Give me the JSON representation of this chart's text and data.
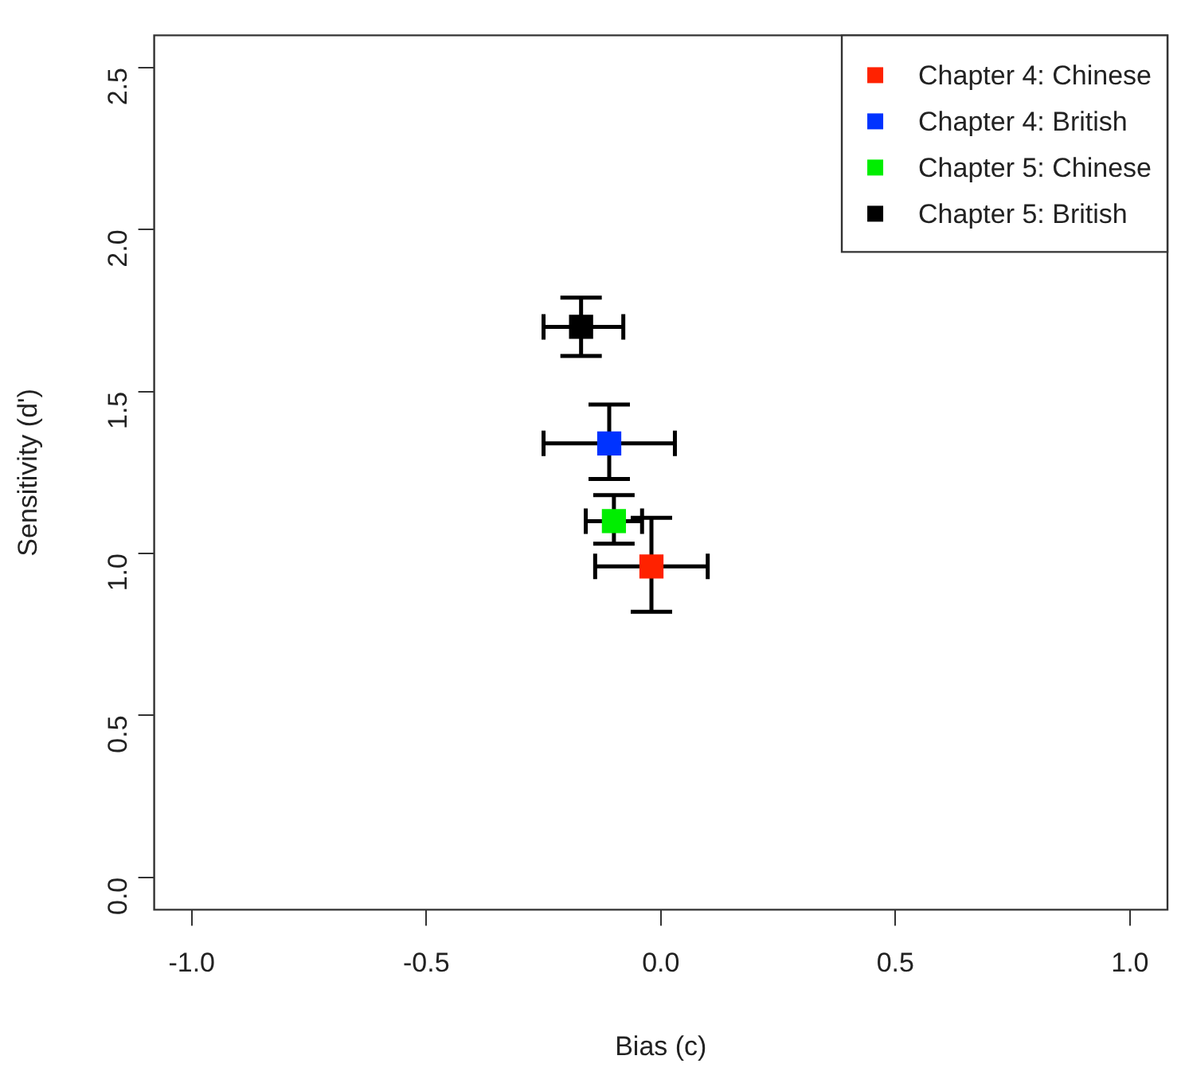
{
  "chart_data": {
    "type": "scatter",
    "xlabel": "Bias (c)",
    "ylabel": "Sensitivity (d')",
    "series": [
      {
        "name": "Chapter 4: Chinese",
        "color": "#ff2200",
        "x": [
          -0.02
        ],
        "values": [
          0.96
        ],
        "errors": [
          [
            0.82,
            1.11
          ]
        ],
        "xerrors": [
          [
            -0.14,
            0.1
          ]
        ]
      },
      {
        "name": "Chapter 4: British",
        "color": "#0033ff",
        "x": [
          -0.11
        ],
        "values": [
          1.34
        ],
        "errors": [
          [
            1.23,
            1.46
          ]
        ],
        "xerrors": [
          [
            -0.25,
            0.03
          ]
        ]
      },
      {
        "name": "Chapter 5: Chinese",
        "color": "#00ee00",
        "x": [
          -0.1
        ],
        "values": [
          1.1
        ],
        "errors": [
          [
            1.03,
            1.18
          ]
        ],
        "xerrors": [
          [
            -0.16,
            -0.04
          ]
        ]
      },
      {
        "name": "Chapter 5: British",
        "color": "#000000",
        "x": [
          -0.17
        ],
        "values": [
          1.7
        ],
        "errors": [
          [
            1.61,
            1.79
          ]
        ],
        "xerrors": [
          [
            -0.25,
            -0.08
          ]
        ]
      }
    ],
    "xlim": [
      -1.08,
      1.08
    ],
    "ylim": [
      -0.1,
      2.6
    ],
    "xticks": [
      {
        "value": -1,
        "label": "-1.0"
      },
      {
        "value": -0.5,
        "label": "-0.5"
      },
      {
        "value": 0,
        "label": "0.0"
      },
      {
        "value": 0.5,
        "label": "0.5"
      },
      {
        "value": 1,
        "label": "1.0"
      }
    ],
    "yticks": [
      {
        "value": 0,
        "label": "0.0"
      },
      {
        "value": 0.5,
        "label": "0.5"
      },
      {
        "value": 1,
        "label": "1.0"
      },
      {
        "value": 1.5,
        "label": "1.5"
      },
      {
        "value": 2,
        "label": "2.0"
      },
      {
        "value": 2.5,
        "label": "2.5"
      }
    ],
    "grid": false,
    "legend": "top right",
    "marker": "square"
  }
}
